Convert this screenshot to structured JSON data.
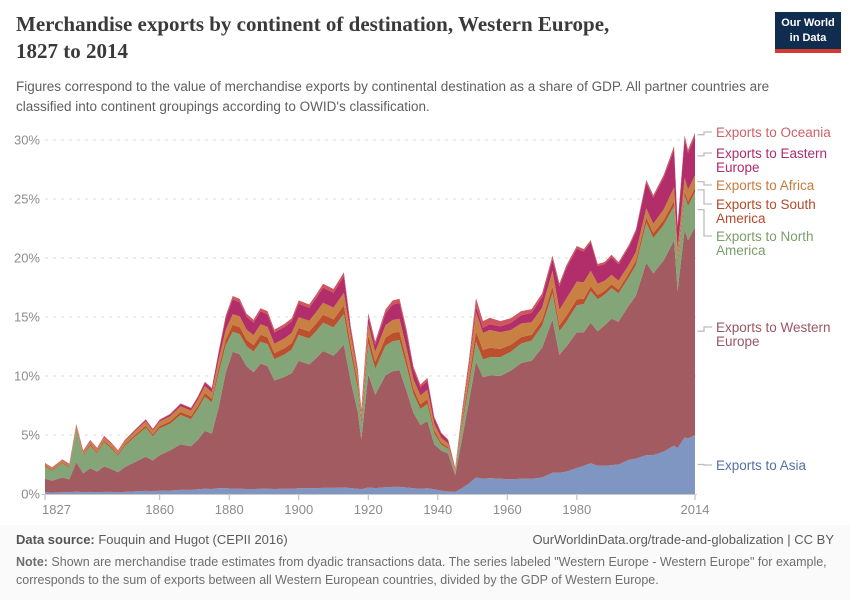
{
  "header": {
    "title_lines": [
      "Merchandise exports by continent of destination, Western Europe,",
      "1827 to 2014"
    ],
    "logo_lines": [
      "Our World",
      "in Data"
    ],
    "logo_bg": "#102d50",
    "logo_accent": "#d33a30"
  },
  "subtitle": "Figures correspond to the value of merchandise exports by continental destination as a share of GDP. All partner countries are classified into continent groupings according to OWID's classification.",
  "footer": {
    "datasource_label": "Data source:",
    "datasource": " Fouquin and Hugot (CEPII 2016)",
    "link": "OurWorldinData.org/trade-and-globalization | CC BY",
    "note_label": "Note:",
    "note": " Shown are merchandise trade estimates from dyadic transactions data. The series labeled \"Western Europe - Western Europe\" for example, corresponds to the sum of exports between all Western European countries, divided by the GDP of Western Europe."
  },
  "chart_data": {
    "type": "area",
    "stacked": true,
    "title": "Merchandise exports by continent of destination, Western Europe, 1827 to 2014",
    "ylabel": "share of GDP",
    "grid": "dashed-horizontal",
    "legend_position": "right",
    "xlim": [
      1827,
      2014
    ],
    "ylim": [
      0,
      30.6
    ],
    "yticks": [
      {
        "v": 0,
        "label": "0%"
      },
      {
        "v": 5,
        "label": "5%"
      },
      {
        "v": 10,
        "label": "10%"
      },
      {
        "v": 15,
        "label": "15%"
      },
      {
        "v": 20,
        "label": "20%"
      },
      {
        "v": 25,
        "label": "25%"
      },
      {
        "v": 30,
        "label": "30%"
      }
    ],
    "xticks": [
      {
        "v": 1827,
        "label": "1827"
      },
      {
        "v": 1860,
        "label": "1860"
      },
      {
        "v": 1880,
        "label": "1880"
      },
      {
        "v": 1900,
        "label": "1900"
      },
      {
        "v": 1920,
        "label": "1920"
      },
      {
        "v": 1940,
        "label": "1940"
      },
      {
        "v": 1960,
        "label": "1960"
      },
      {
        "v": 1980,
        "label": "1980"
      },
      {
        "v": 2014,
        "label": "2014"
      }
    ],
    "x": [
      1827,
      1829,
      1832,
      1834,
      1836,
      1838,
      1840,
      1842,
      1844,
      1846,
      1848,
      1850,
      1853,
      1856,
      1858,
      1860,
      1863,
      1866,
      1869,
      1871,
      1873,
      1875,
      1877,
      1879,
      1881,
      1883,
      1885,
      1887,
      1889,
      1891,
      1893,
      1896,
      1898,
      1900,
      1903,
      1905,
      1907,
      1910,
      1913,
      1915,
      1917,
      1918,
      1920,
      1922,
      1925,
      1927,
      1929,
      1931,
      1933,
      1935,
      1937,
      1939,
      1941,
      1943,
      1945,
      1947,
      1949,
      1951,
      1953,
      1955,
      1958,
      1961,
      1964,
      1967,
      1970,
      1973,
      1975,
      1977,
      1980,
      1982,
      1984,
      1986,
      1988,
      1990,
      1992,
      1995,
      1997,
      2000,
      2002,
      2005,
      2008,
      2009,
      2011,
      2012,
      2014
    ],
    "series": [
      {
        "key": "asia",
        "label": "Exports to Asia",
        "label_lines": [
          "Exports to Asia"
        ],
        "color": "#7e96c1",
        "label_color": "#5271a6",
        "values": [
          0.15,
          0.13,
          0.15,
          0.14,
          0.2,
          0.15,
          0.18,
          0.15,
          0.18,
          0.18,
          0.15,
          0.18,
          0.22,
          0.26,
          0.24,
          0.28,
          0.3,
          0.35,
          0.35,
          0.4,
          0.45,
          0.42,
          0.5,
          0.5,
          0.45,
          0.45,
          0.42,
          0.42,
          0.45,
          0.45,
          0.42,
          0.44,
          0.45,
          0.48,
          0.48,
          0.5,
          0.52,
          0.52,
          0.55,
          0.5,
          0.45,
          0.4,
          0.55,
          0.5,
          0.58,
          0.6,
          0.6,
          0.55,
          0.48,
          0.45,
          0.48,
          0.4,
          0.28,
          0.22,
          0.18,
          0.5,
          0.9,
          1.4,
          1.3,
          1.35,
          1.3,
          1.25,
          1.3,
          1.3,
          1.4,
          1.8,
          1.8,
          1.9,
          2.2,
          2.4,
          2.6,
          2.4,
          2.4,
          2.45,
          2.5,
          2.9,
          3.0,
          3.3,
          3.3,
          3.6,
          4.1,
          3.9,
          4.8,
          4.7,
          5.0
        ]
      },
      {
        "key": "western_europe",
        "label": "Exports to Western Europe",
        "label_lines": [
          "Exports to Western",
          "Europe"
        ],
        "color": "#a25b61",
        "label_color": "#9b5566",
        "values": [
          1.15,
          1.0,
          1.25,
          1.1,
          2.5,
          1.6,
          2.0,
          1.75,
          2.15,
          1.95,
          1.7,
          2.1,
          2.5,
          2.9,
          2.6,
          3.0,
          3.4,
          3.85,
          3.7,
          4.2,
          4.9,
          4.7,
          6.9,
          9.8,
          11.6,
          11.4,
          10.4,
          9.9,
          10.6,
          10.4,
          9.2,
          9.5,
          9.8,
          10.8,
          10.5,
          11.0,
          11.6,
          11.2,
          12.1,
          9.0,
          6.5,
          4.2,
          9.6,
          7.9,
          9.5,
          9.8,
          9.9,
          8.2,
          6.4,
          5.4,
          5.7,
          3.8,
          3.4,
          3.2,
          1.4,
          4.2,
          7.0,
          9.8,
          8.6,
          8.7,
          8.7,
          9.2,
          9.8,
          10.0,
          11.0,
          13.0,
          10.0,
          10.6,
          11.5,
          11.3,
          11.9,
          11.4,
          11.9,
          12.4,
          12.1,
          13.1,
          13.8,
          16.3,
          15.4,
          16.2,
          17.4,
          13.3,
          17.6,
          16.8,
          17.6
        ]
      },
      {
        "key": "north_america",
        "label": "Exports to North America",
        "label_lines": [
          "Exports to North",
          "America"
        ],
        "color": "#83a577",
        "label_color": "#7a9e68",
        "values": [
          1.0,
          0.85,
          1.2,
          1.0,
          2.7,
          1.5,
          1.9,
          1.55,
          2.05,
          1.75,
          1.4,
          1.8,
          2.15,
          2.45,
          2.05,
          2.3,
          2.25,
          2.5,
          2.3,
          2.6,
          2.9,
          2.65,
          2.9,
          2.3,
          1.7,
          1.7,
          1.7,
          1.75,
          1.85,
          1.85,
          1.8,
          1.9,
          2.0,
          2.2,
          2.2,
          2.3,
          2.4,
          2.4,
          2.6,
          2.4,
          2.0,
          1.4,
          2.6,
          2.2,
          2.5,
          2.55,
          2.55,
          2.1,
          1.6,
          1.35,
          1.45,
          0.9,
          0.5,
          0.4,
          0.25,
          1.1,
          1.4,
          1.7,
          1.5,
          1.55,
          1.6,
          1.6,
          1.65,
          1.7,
          1.85,
          2.2,
          2.0,
          2.1,
          2.3,
          2.4,
          2.7,
          2.7,
          2.6,
          2.6,
          2.4,
          2.4,
          2.6,
          3.4,
          3.0,
          3.0,
          2.9,
          2.3,
          2.9,
          2.9,
          3.0
        ]
      },
      {
        "key": "south_america",
        "label": "Exports to South America",
        "label_lines": [
          "Exports to South",
          "America"
        ],
        "color": "#bc4f2e",
        "label_color": "#b44a28",
        "values": [
          0.08,
          0.07,
          0.08,
          0.08,
          0.12,
          0.1,
          0.12,
          0.11,
          0.13,
          0.12,
          0.11,
          0.13,
          0.15,
          0.18,
          0.16,
          0.18,
          0.22,
          0.26,
          0.25,
          0.28,
          0.32,
          0.3,
          0.42,
          0.5,
          0.6,
          0.6,
          0.55,
          0.55,
          0.6,
          0.58,
          0.52,
          0.54,
          0.55,
          0.6,
          0.6,
          0.65,
          0.68,
          0.68,
          0.75,
          0.6,
          0.5,
          0.4,
          0.7,
          0.6,
          0.68,
          0.7,
          0.7,
          0.58,
          0.45,
          0.4,
          0.42,
          0.3,
          0.18,
          0.14,
          0.08,
          0.3,
          0.55,
          0.9,
          0.8,
          0.8,
          0.7,
          0.6,
          0.55,
          0.5,
          0.5,
          0.6,
          0.5,
          0.52,
          0.5,
          0.45,
          0.42,
          0.36,
          0.33,
          0.32,
          0.32,
          0.35,
          0.4,
          0.45,
          0.42,
          0.42,
          0.45,
          0.35,
          0.4,
          0.4,
          0.35
        ]
      },
      {
        "key": "africa",
        "label": "Exports to Africa",
        "label_lines": [
          "Exports to Africa"
        ],
        "color": "#c98143",
        "label_color": "#c77b3d",
        "values": [
          0.18,
          0.15,
          0.18,
          0.18,
          0.3,
          0.25,
          0.28,
          0.26,
          0.3,
          0.28,
          0.25,
          0.28,
          0.33,
          0.38,
          0.34,
          0.38,
          0.42,
          0.48,
          0.47,
          0.52,
          0.58,
          0.55,
          0.72,
          0.8,
          0.9,
          0.9,
          0.85,
          0.85,
          0.88,
          0.88,
          0.8,
          0.82,
          0.85,
          0.9,
          0.9,
          0.95,
          1.0,
          1.0,
          1.05,
          0.9,
          0.7,
          0.5,
          0.95,
          0.85,
          1.05,
          1.1,
          1.1,
          0.95,
          0.8,
          0.75,
          0.8,
          0.55,
          0.4,
          0.32,
          0.18,
          0.6,
          1.0,
          1.6,
          1.45,
          1.5,
          1.4,
          1.25,
          1.15,
          1.05,
          1.05,
          1.3,
          1.3,
          1.45,
          1.5,
          1.4,
          1.3,
          0.95,
          0.85,
          0.8,
          0.75,
          0.7,
          0.72,
          0.75,
          0.78,
          0.9,
          1.15,
          0.9,
          1.1,
          1.0,
          1.05
        ]
      },
      {
        "key": "eastern_europe",
        "label": "Exports to Eastern Europe",
        "label_lines": [
          "Exports to Eastern",
          "Europe"
        ],
        "color": "#b12e6a",
        "label_color": "#ae2b6e",
        "values": [
          0.05,
          0.04,
          0.05,
          0.05,
          0.08,
          0.06,
          0.07,
          0.06,
          0.08,
          0.07,
          0.06,
          0.08,
          0.1,
          0.12,
          0.1,
          0.12,
          0.15,
          0.18,
          0.18,
          0.22,
          0.28,
          0.3,
          0.6,
          1.0,
          1.25,
          1.2,
          1.1,
          1.05,
          1.1,
          1.08,
          0.95,
          0.98,
          1.0,
          1.15,
          1.1,
          1.2,
          1.3,
          1.25,
          1.4,
          0.45,
          0.25,
          0.15,
          0.6,
          0.6,
          1.0,
          1.3,
          1.35,
          1.3,
          0.85,
          0.7,
          0.75,
          0.45,
          0.35,
          0.28,
          0.1,
          0.25,
          0.35,
          0.5,
          0.45,
          0.48,
          0.5,
          0.6,
          0.7,
          0.8,
          0.9,
          1.0,
          2.0,
          2.6,
          2.8,
          2.6,
          2.4,
          1.5,
          1.4,
          1.5,
          1.4,
          1.5,
          1.7,
          2.2,
          2.2,
          2.7,
          3.2,
          1.9,
          3.3,
          3.1,
          3.3
        ]
      },
      {
        "key": "oceania",
        "label": "Exports to Oceania",
        "label_lines": [
          "Exports to Oceania"
        ],
        "color": "#d0565e",
        "label_color": "#ce5f68",
        "values": [
          0.02,
          0.02,
          0.02,
          0.02,
          0.03,
          0.02,
          0.03,
          0.03,
          0.03,
          0.03,
          0.03,
          0.03,
          0.04,
          0.04,
          0.04,
          0.05,
          0.05,
          0.06,
          0.06,
          0.07,
          0.08,
          0.08,
          0.12,
          0.22,
          0.28,
          0.28,
          0.25,
          0.25,
          0.27,
          0.26,
          0.24,
          0.25,
          0.26,
          0.28,
          0.28,
          0.3,
          0.32,
          0.32,
          0.35,
          0.3,
          0.25,
          0.18,
          0.33,
          0.28,
          0.33,
          0.35,
          0.35,
          0.3,
          0.25,
          0.22,
          0.24,
          0.15,
          0.08,
          0.06,
          0.05,
          0.15,
          0.3,
          0.7,
          0.55,
          0.55,
          0.45,
          0.4,
          0.35,
          0.32,
          0.3,
          0.3,
          0.25,
          0.22,
          0.22,
          0.2,
          0.2,
          0.18,
          0.18,
          0.2,
          0.18,
          0.18,
          0.2,
          0.22,
          0.22,
          0.22,
          0.28,
          0.18,
          0.3,
          0.28,
          0.3
        ]
      }
    ]
  }
}
